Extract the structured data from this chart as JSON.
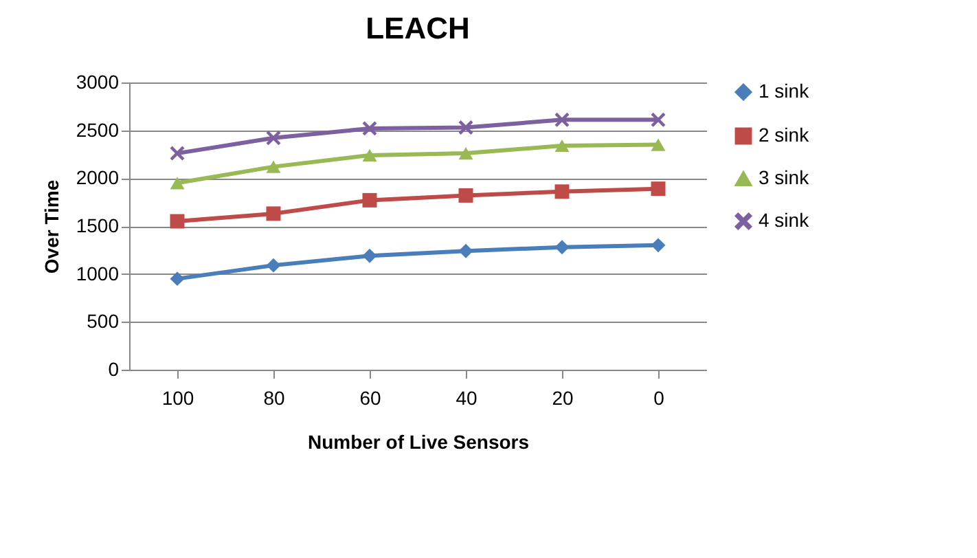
{
  "chart_data": {
    "type": "line",
    "title": "LEACH",
    "xlabel": "Number of Live Sensors",
    "ylabel": "Over Time",
    "categories": [
      "100",
      "80",
      "60",
      "40",
      "20",
      "0"
    ],
    "ylim": [
      0,
      3000
    ],
    "yticks": [
      0,
      500,
      1000,
      1500,
      2000,
      2500,
      3000
    ],
    "grid": "y",
    "legend": "right",
    "series": [
      {
        "name": "1 sink",
        "color": "#4a7ebb",
        "marker": "diamond",
        "values": [
          950,
          1090,
          1190,
          1240,
          1280,
          1300
        ]
      },
      {
        "name": "2 sink",
        "color": "#be4b48",
        "marker": "square",
        "values": [
          1550,
          1630,
          1770,
          1820,
          1860,
          1890
        ]
      },
      {
        "name": "3 sink",
        "color": "#98b954",
        "marker": "triangle",
        "values": [
          1950,
          2120,
          2240,
          2260,
          2340,
          2350
        ]
      },
      {
        "name": "4 sink",
        "color": "#7d60a0",
        "marker": "cross",
        "values": [
          2260,
          2420,
          2520,
          2530,
          2610,
          2610
        ]
      }
    ]
  }
}
